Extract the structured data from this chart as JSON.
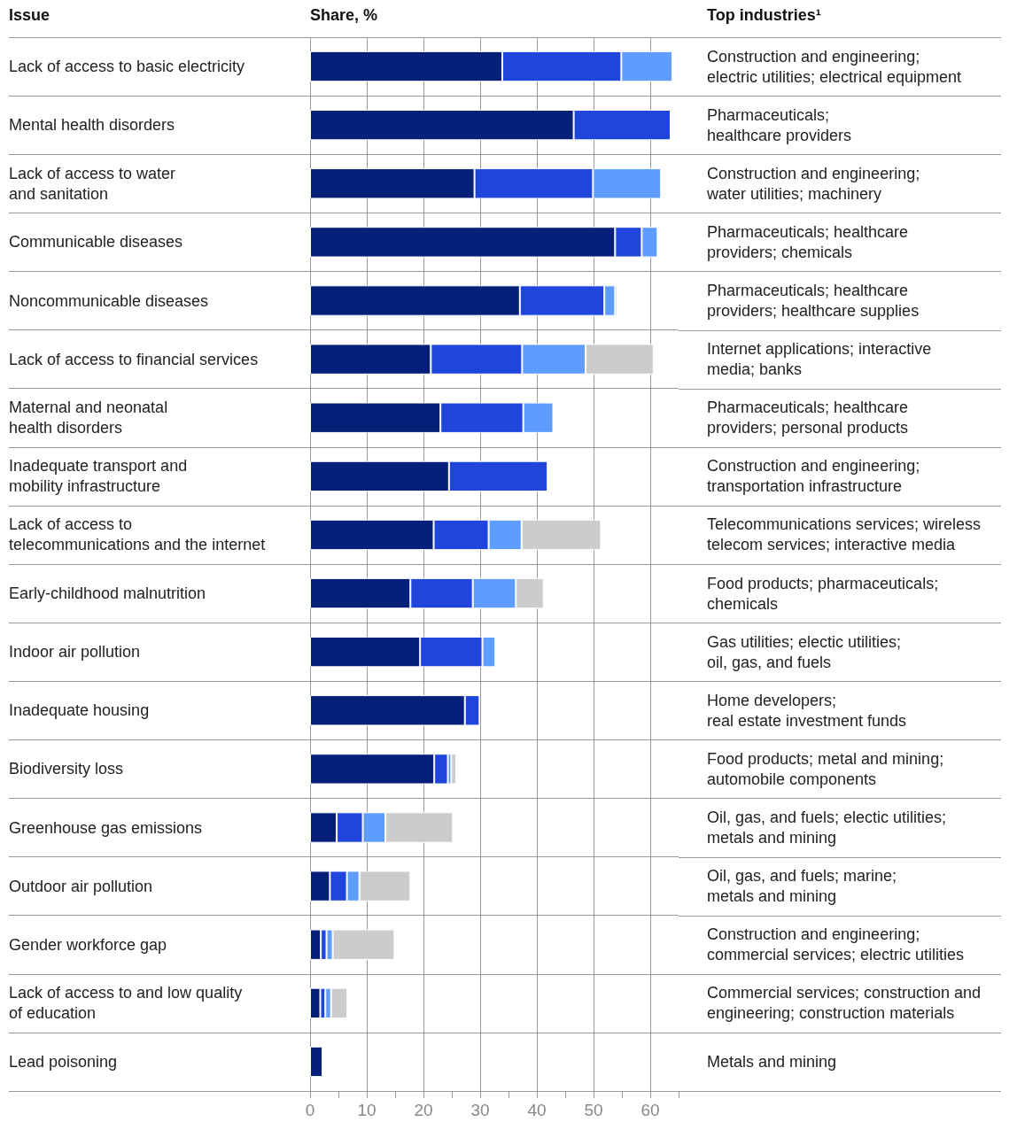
{
  "chart_data": {
    "type": "bar",
    "orientation": "horizontal",
    "stacked": true,
    "ylabel": "Issue",
    "xlabel": "Share, %",
    "y2label": "Top industries¹",
    "categories": [
      "Lack of access to basic electricity",
      "Mental health disorders",
      "Lack of access to water\nand sanitation",
      "Communicable diseases",
      "Noncommunicable diseases",
      "Lack of access to financial services",
      "Maternal and neonatal\nhealth disorders",
      "Inadequate transport and\nmobility infrastructure",
      "Lack of access to\ntelecommunications and the internet",
      "Early-childhood malnutrition",
      "Indoor air pollution",
      "Inadequate housing",
      "Biodiversity loss",
      "Greenhouse gas emissions",
      "Outdoor air pollution",
      "Gender workforce gap",
      "Lack of access to and low quality\nof education",
      "Lead poisoning"
    ],
    "series": [
      {
        "color": "#061f79",
        "values": [
          33.9,
          46.5,
          29.0,
          53.8,
          37.0,
          21.3,
          23.0,
          24.5,
          21.8,
          17.7,
          19.4,
          27.3,
          21.9,
          4.7,
          3.5,
          1.9,
          1.8,
          2.2
        ]
      },
      {
        "color": "#1f45dc",
        "values": [
          21.0,
          17.1,
          20.9,
          4.7,
          14.9,
          16.1,
          14.6,
          17.4,
          9.7,
          11.0,
          11.0,
          2.6,
          2.4,
          4.6,
          3.0,
          1.0,
          0.9,
          null
        ]
      },
      {
        "color": "#5e9dff",
        "values": [
          9.0,
          null,
          12.0,
          2.8,
          1.9,
          11.2,
          5.3,
          null,
          5.8,
          7.6,
          2.3,
          null,
          0.6,
          4.0,
          2.2,
          1.1,
          1.0,
          null
        ]
      },
      {
        "color": "#cccccc",
        "values": [
          null,
          null,
          null,
          null,
          0.4,
          12.0,
          null,
          null,
          14.0,
          4.9,
          null,
          null,
          0.9,
          11.9,
          9.0,
          10.9,
          2.9,
          null
        ]
      }
    ],
    "annotations": [
      "Construction and engineering;\nelectric utilities; electrical equipment",
      "Pharmaceuticals;\nhealthcare providers",
      "Construction and engineering;\nwater utilities; machinery",
      "Pharmaceuticals; healthcare\nproviders; chemicals",
      "Pharmaceuticals; healthcare\nproviders; healthcare supplies",
      "Internet applications; interactive\nmedia; banks",
      "Pharmaceuticals; healthcare\nproviders; personal products",
      "Construction and engineering;\ntransportation infrastructure",
      "Telecommunications services; wireless\ntelecom services; interactive media",
      "Food products; pharmaceuticals;\nchemicals",
      "Gas utilities; electic utilities;\noil, gas, and fuels",
      "Home developers;\nreal estate investment funds",
      "Food products; metal and mining;\nautomobile components",
      "Oil, gas, and fuels; electic utilities;\nmetals and mining",
      "Oil, gas, and fuels; marine;\nmetals and mining",
      "Construction and engineering;\ncommercial services; electric utilities",
      "Commercial services; construction and\nengineering; construction materials",
      "Metals and mining"
    ],
    "xlim": [
      0,
      65
    ],
    "xticks": [
      0,
      {
        "value": 5,
        "label": null
      },
      10,
      {
        "value": 15,
        "label": null
      },
      20,
      {
        "value": 25,
        "label": null
      },
      30,
      {
        "value": 35,
        "label": null
      },
      40,
      {
        "value": 45,
        "label": null
      },
      50,
      {
        "value": 55,
        "label": null
      },
      60,
      {
        "value": 65,
        "label": null
      }
    ],
    "grid": true
  }
}
